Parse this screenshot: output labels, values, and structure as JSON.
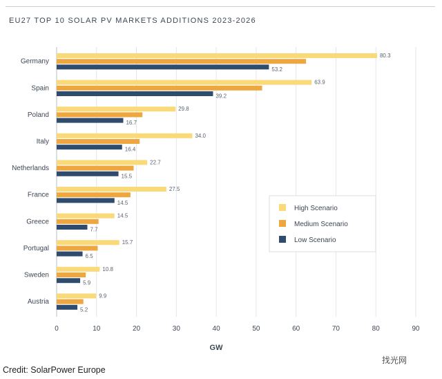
{
  "title": "EU27 TOP 10 SOLAR PV MARKETS ADDITIONS 2023-2026",
  "credit": "Credit: SolarPower Europe",
  "watermark": "找光网",
  "colors": {
    "high": "#f9d978",
    "medium": "#eea73e",
    "low": "#2f4c6e",
    "grid": "#e3e6ea",
    "axis": "#b8bec6",
    "text": "#3c4654"
  },
  "chart_data": {
    "type": "bar",
    "orientation": "horizontal",
    "categories": [
      "Germany",
      "Spain",
      "Poland",
      "Italy",
      "Netherlands",
      "France",
      "Greece",
      "Portugal",
      "Sweden",
      "Austria"
    ],
    "series": [
      {
        "name": "High Scenario",
        "values": [
          80.3,
          63.9,
          29.8,
          34.0,
          22.7,
          27.5,
          14.5,
          15.7,
          10.8,
          9.9
        ]
      },
      {
        "name": "Medium Scenario",
        "values": [
          62.5,
          51.5,
          21.5,
          20.8,
          19.3,
          18.5,
          10.5,
          10.3,
          7.3,
          6.7
        ]
      },
      {
        "name": "Low Scenario",
        "values": [
          53.2,
          39.2,
          16.7,
          16.4,
          15.5,
          14.5,
          7.7,
          6.5,
          5.9,
          5.2
        ]
      }
    ],
    "data_labels": {
      "High Scenario": [
        "80.3",
        "63.9",
        "29.8",
        "34.0",
        "22.7",
        "27.5",
        "14.5",
        "15.7",
        "10.8",
        "9.9"
      ],
      "Low Scenario": [
        "53.2",
        "39.2",
        "16.7",
        "16.4",
        "15.5",
        "14.5",
        "7.7",
        "6.5",
        "5.9",
        "5.2"
      ]
    },
    "xlabel": "GW",
    "xlim": [
      0,
      90
    ],
    "xticks": [
      0,
      10,
      20,
      30,
      40,
      50,
      60,
      70,
      80,
      90
    ],
    "grid": true,
    "legend_position": "right"
  }
}
